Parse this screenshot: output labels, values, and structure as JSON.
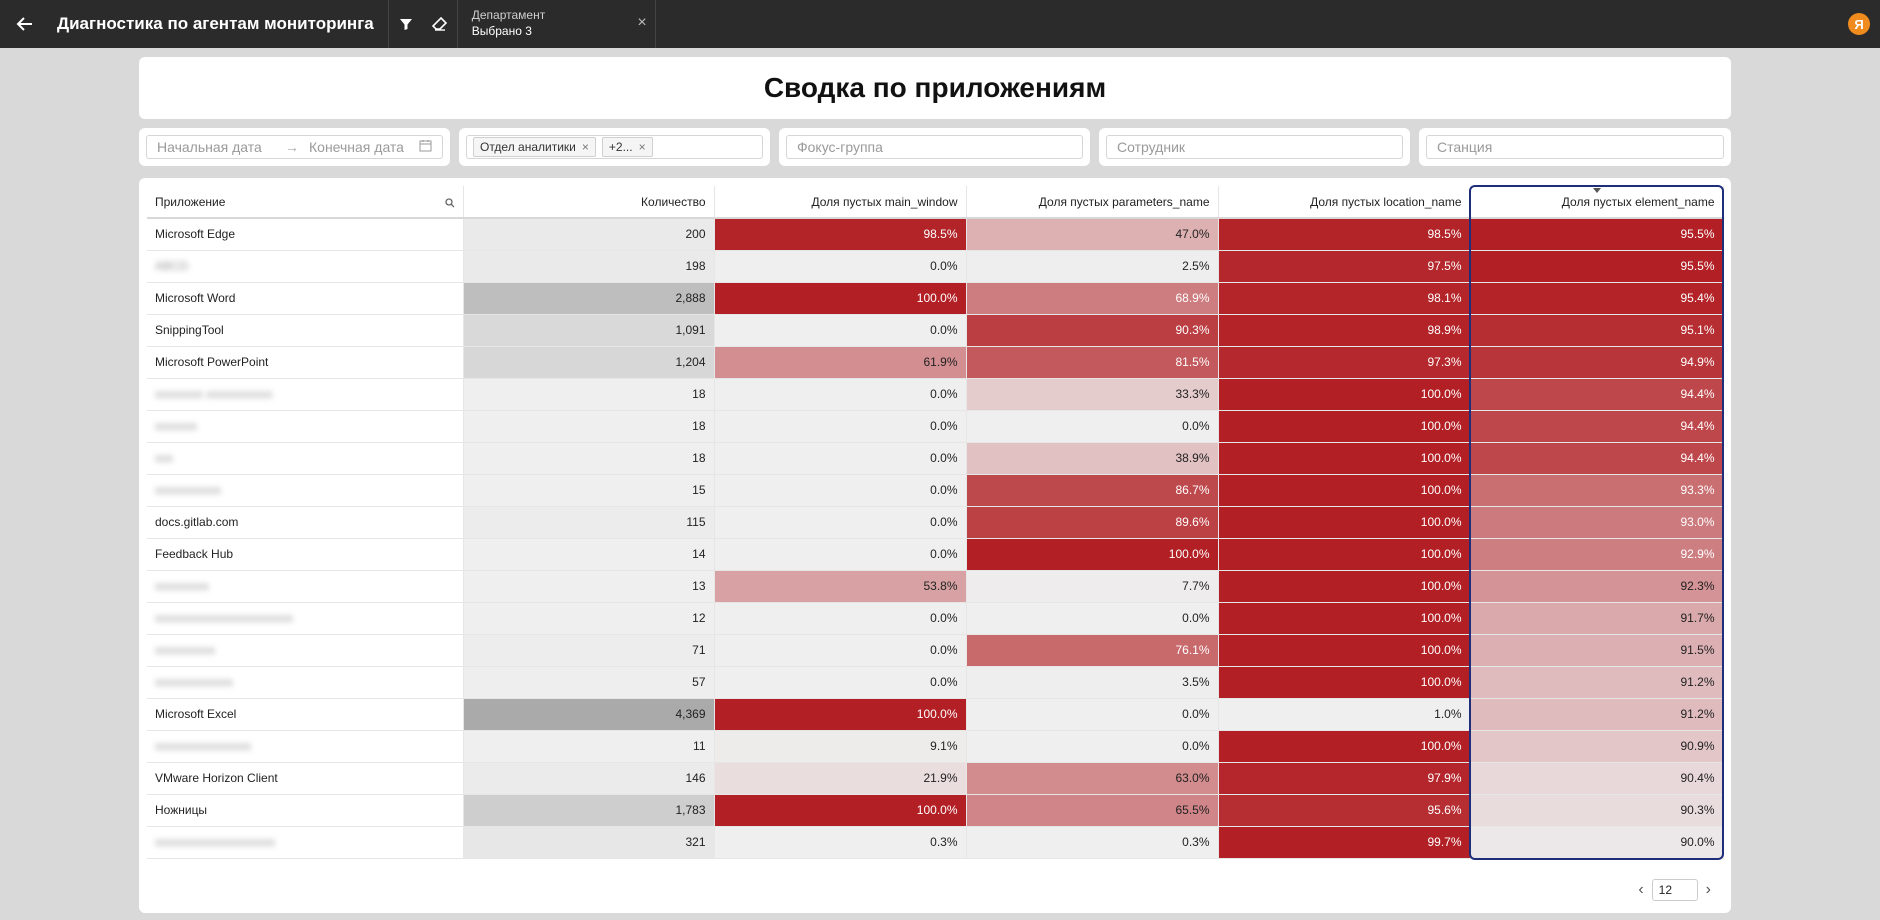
{
  "header": {
    "title": "Диагностика по агентам мониторинга",
    "filter_label": "Департамент",
    "filter_value": "Выбрано 3",
    "user_initial": "Я"
  },
  "page_title": "Сводка по приложениям",
  "filters": {
    "start_date_placeholder": "Начальная дата",
    "end_date_placeholder": "Конечная дата",
    "dept_tag": "Отдел аналитики",
    "dept_more": "+2...",
    "focus_placeholder": "Фокус-группа",
    "employee_placeholder": "Сотрудник",
    "station_placeholder": "Станция"
  },
  "table": {
    "columns": [
      "Приложение",
      "Количество",
      "Доля пустых main_window",
      "Доля пустых parameters_name",
      "Доля пустых location_name",
      "Доля пустых element_name"
    ],
    "rows": [
      {
        "app": "Microsoft Edge",
        "blur": false,
        "count": "200",
        "mw": "98.5%",
        "pn": "47.0%",
        "ln": "98.5%",
        "en": "95.5%"
      },
      {
        "app": "ABCD",
        "blur": true,
        "count": "198",
        "mw": "0.0%",
        "pn": "2.5%",
        "ln": "97.5%",
        "en": "95.5%"
      },
      {
        "app": "Microsoft Word",
        "blur": false,
        "count": "2,888",
        "mw": "100.0%",
        "pn": "68.9%",
        "ln": "98.1%",
        "en": "95.4%"
      },
      {
        "app": "SnippingTool",
        "blur": false,
        "count": "1,091",
        "mw": "0.0%",
        "pn": "90.3%",
        "ln": "98.9%",
        "en": "95.1%"
      },
      {
        "app": "Microsoft PowerPoint",
        "blur": false,
        "count": "1,204",
        "mw": "61.9%",
        "pn": "81.5%",
        "ln": "97.3%",
        "en": "94.9%"
      },
      {
        "app": "xxxxxxxx xxxxxxxxxxx",
        "blur": true,
        "count": "18",
        "mw": "0.0%",
        "pn": "33.3%",
        "ln": "100.0%",
        "en": "94.4%"
      },
      {
        "app": "xxxxxxx",
        "blur": true,
        "count": "18",
        "mw": "0.0%",
        "pn": "0.0%",
        "ln": "100.0%",
        "en": "94.4%"
      },
      {
        "app": "xxx",
        "blur": true,
        "count": "18",
        "mw": "0.0%",
        "pn": "38.9%",
        "ln": "100.0%",
        "en": "94.4%"
      },
      {
        "app": "xxxxxxxxxxx",
        "blur": true,
        "count": "15",
        "mw": "0.0%",
        "pn": "86.7%",
        "ln": "100.0%",
        "en": "93.3%"
      },
      {
        "app": "docs.gitlab.com",
        "blur": false,
        "count": "115",
        "mw": "0.0%",
        "pn": "89.6%",
        "ln": "100.0%",
        "en": "93.0%"
      },
      {
        "app": "Feedback Hub",
        "blur": false,
        "count": "14",
        "mw": "0.0%",
        "pn": "100.0%",
        "ln": "100.0%",
        "en": "92.9%"
      },
      {
        "app": "xxxxxxxxx",
        "blur": true,
        "count": "13",
        "mw": "53.8%",
        "pn": "7.7%",
        "ln": "100.0%",
        "en": "92.3%"
      },
      {
        "app": "xxxxxxxxxxxxxxxxxxxxxxx",
        "blur": true,
        "count": "12",
        "mw": "0.0%",
        "pn": "0.0%",
        "ln": "100.0%",
        "en": "91.7%"
      },
      {
        "app": "xxxxxxxxxx",
        "blur": true,
        "count": "71",
        "mw": "0.0%",
        "pn": "76.1%",
        "ln": "100.0%",
        "en": "91.5%"
      },
      {
        "app": "xxxxxxxxxxxxx",
        "blur": true,
        "count": "57",
        "mw": "0.0%",
        "pn": "3.5%",
        "ln": "100.0%",
        "en": "91.2%"
      },
      {
        "app": "Microsoft Excel",
        "blur": false,
        "count": "4,369",
        "mw": "100.0%",
        "pn": "0.0%",
        "ln": "1.0%",
        "en": "91.2%"
      },
      {
        "app": "xxxxxxxxxxxxxxxx",
        "blur": true,
        "count": "11",
        "mw": "9.1%",
        "pn": "0.0%",
        "ln": "100.0%",
        "en": "90.9%"
      },
      {
        "app": "VMware Horizon Client",
        "blur": false,
        "count": "146",
        "mw": "21.9%",
        "pn": "63.0%",
        "ln": "97.9%",
        "en": "90.4%"
      },
      {
        "app": "Ножницы",
        "blur": false,
        "count": "1,783",
        "mw": "100.0%",
        "pn": "65.5%",
        "ln": "95.6%",
        "en": "90.3%"
      },
      {
        "app": "xxxxxxxxxxxxxxxxxxxx",
        "blur": true,
        "count": "321",
        "mw": "0.3%",
        "pn": "0.3%",
        "ln": "99.7%",
        "en": "90.0%"
      }
    ]
  },
  "pager": {
    "page": "12"
  }
}
